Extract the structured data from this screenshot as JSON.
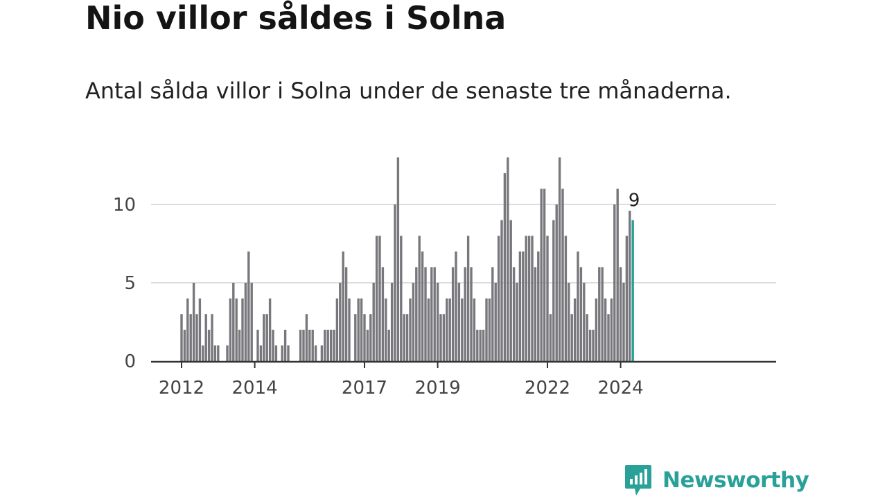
{
  "title": "Nio villor såldes i Solna",
  "subtitle": "Antal sålda villor i Solna under de senaste tre månaderna.",
  "brand": "Newsworthy",
  "colors": {
    "bar": "#78777c",
    "highlight": "#2aa198",
    "grid": "#dcdcdc",
    "axis": "#333333",
    "brand": "#2aa198"
  },
  "chart_data": {
    "type": "bar",
    "x_start": "2012-01",
    "frequency": "monthly",
    "values": [
      3,
      2,
      4,
      3,
      5,
      3,
      4,
      1,
      3,
      2,
      3,
      1,
      1,
      0,
      0,
      1,
      4,
      5,
      4,
      2,
      4,
      5,
      7,
      5,
      0,
      2,
      1,
      3,
      3,
      4,
      2,
      1,
      0,
      1,
      2,
      1,
      0,
      0,
      0,
      2,
      2,
      3,
      2,
      2,
      1,
      0,
      1,
      2,
      2,
      2,
      2,
      4,
      5,
      7,
      6,
      4,
      0,
      3,
      4,
      4,
      3,
      2,
      3,
      5,
      8,
      8,
      6,
      4,
      2,
      5,
      10,
      13,
      8,
      3,
      3,
      4,
      5,
      6,
      8,
      7,
      6,
      4,
      6,
      6,
      5,
      3,
      3,
      4,
      4,
      6,
      7,
      5,
      4,
      6,
      8,
      6,
      4,
      2,
      2,
      2,
      4,
      4,
      6,
      5,
      8,
      9,
      12,
      13,
      9,
      6,
      5,
      7,
      7,
      8,
      8,
      8,
      6,
      7,
      11,
      11,
      8,
      3,
      9,
      10,
      13,
      11,
      8,
      5,
      3,
      4,
      7,
      6,
      5,
      3,
      2,
      2,
      4,
      6,
      6,
      4,
      3,
      4,
      10,
      11,
      6,
      5,
      8,
      9.6,
      9
    ],
    "highlight_last": true,
    "highlight_label": "9",
    "yticks": [
      0,
      5,
      10
    ],
    "xticks": [
      {
        "label": "2012",
        "index": 0
      },
      {
        "label": "2014",
        "index": 24
      },
      {
        "label": "2017",
        "index": 60
      },
      {
        "label": "2019",
        "index": 84
      },
      {
        "label": "2022",
        "index": 120
      },
      {
        "label": "2024",
        "index": 144
      }
    ],
    "ylim": [
      0,
      13
    ],
    "title": "Nio villor såldes i Solna",
    "xlabel": "",
    "ylabel": ""
  }
}
